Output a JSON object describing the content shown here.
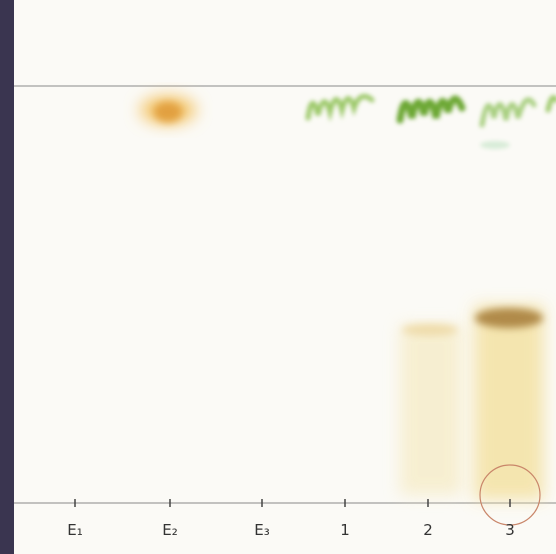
{
  "lanes": [
    {
      "label": "E₁"
    },
    {
      "label": "E₂"
    },
    {
      "label": "E₃"
    },
    {
      "label": "1"
    },
    {
      "label": "2"
    },
    {
      "label": "3"
    }
  ]
}
